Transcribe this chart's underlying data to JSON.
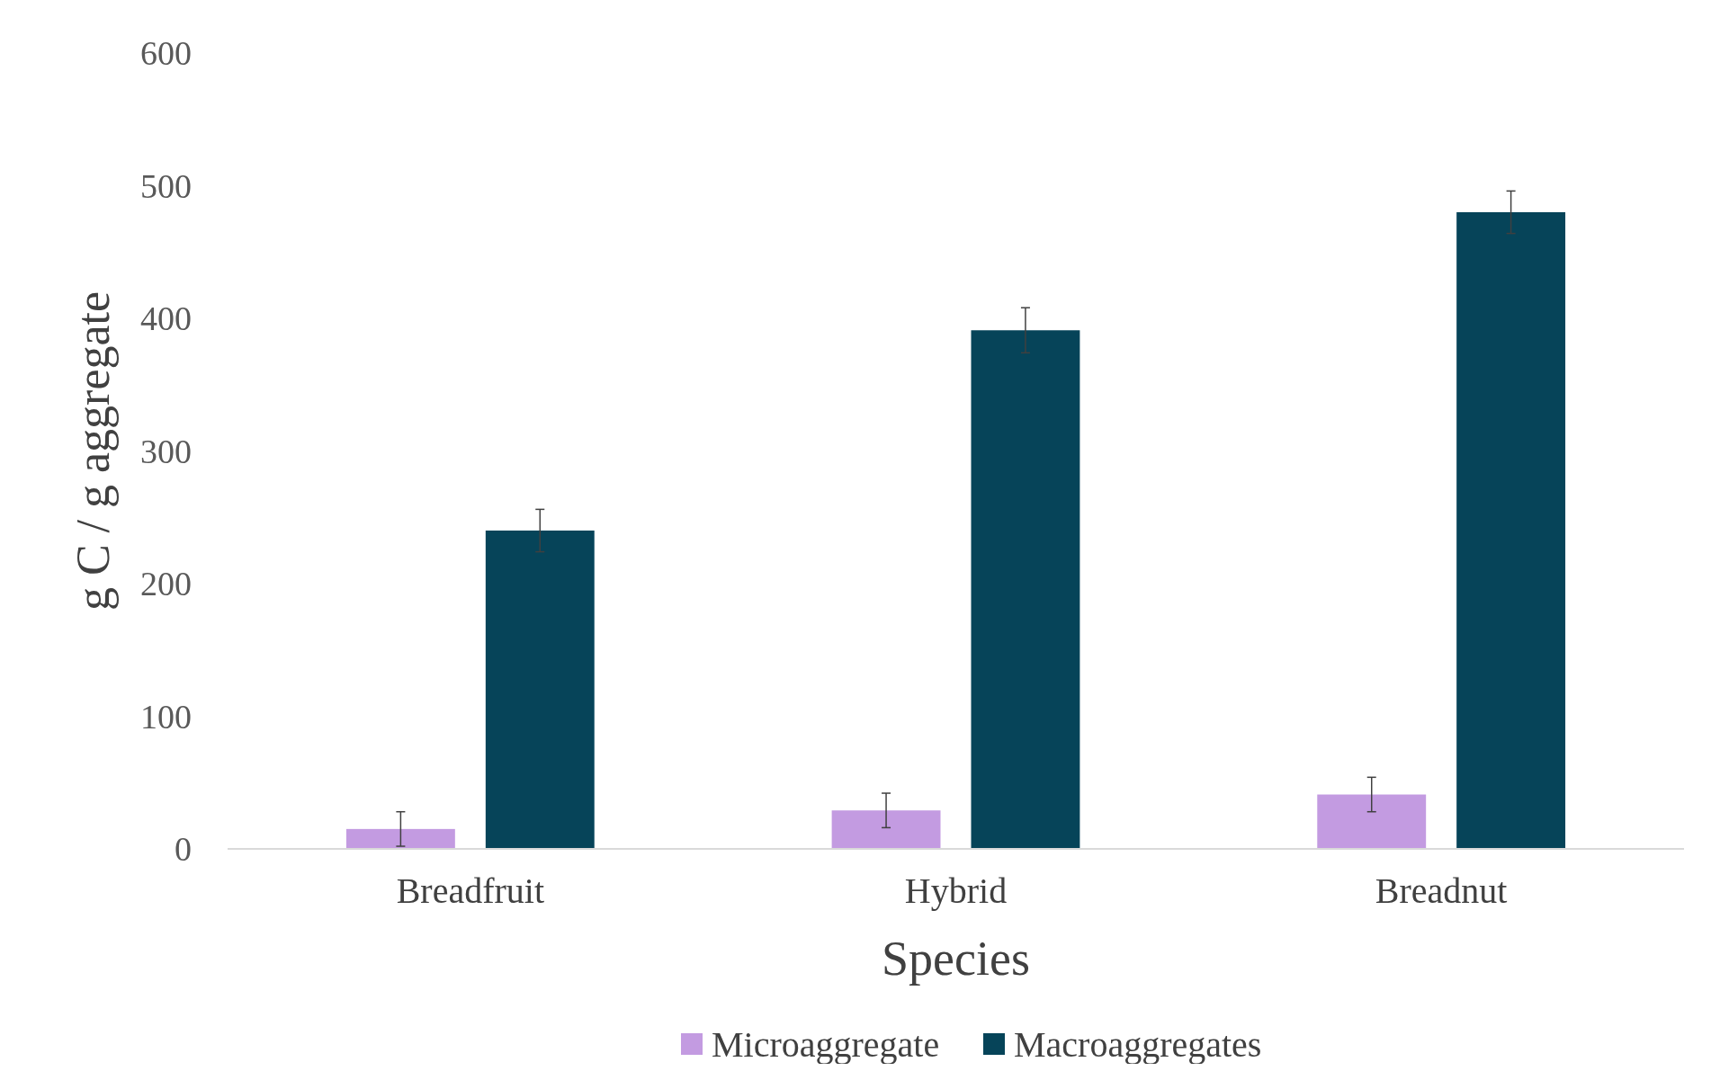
{
  "chart_data": {
    "type": "bar",
    "xlabel": "Species",
    "ylabel": "g C / g aggregate",
    "categories": [
      "Breadfruit",
      "Hybrid",
      "Breadnut"
    ],
    "series": [
      {
        "name": "Microaggregate",
        "color": "#c39be1",
        "values": [
          15,
          29,
          41
        ],
        "errors": [
          13,
          13,
          13
        ]
      },
      {
        "name": "Macroaggregates",
        "color": "#064459",
        "values": [
          240,
          391,
          480
        ],
        "errors": [
          16,
          17,
          16
        ]
      }
    ],
    "ylim": [
      0,
      600
    ],
    "yticks": [
      0,
      100,
      200,
      300,
      400,
      500,
      600
    ],
    "grid": false,
    "legend": "bottom"
  }
}
